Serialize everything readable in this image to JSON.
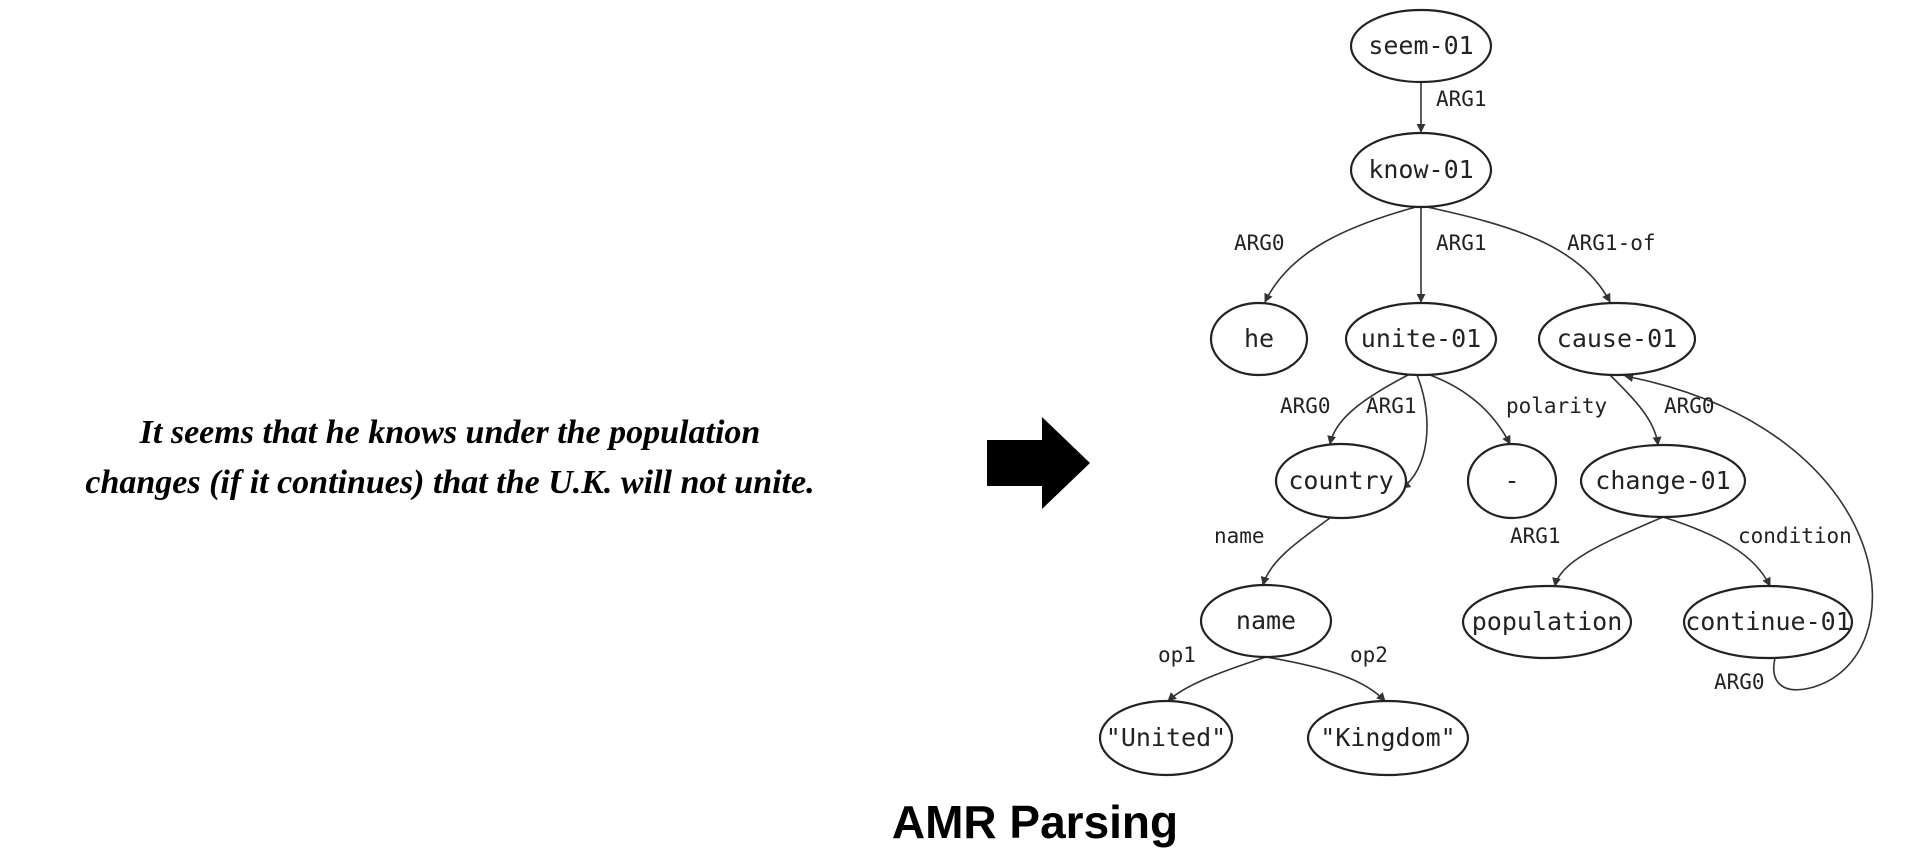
{
  "sentence": {
    "line1": "It seems that he knows under the population",
    "line2": "changes (if it continues) that the U.K. will not unite."
  },
  "arrow": {
    "icon": "right-arrow-icon",
    "color": "#000000"
  },
  "caption": "AMR Parsing",
  "graph": {
    "nodes": [
      {
        "id": "seem",
        "label": "seem-01"
      },
      {
        "id": "know",
        "label": "know-01"
      },
      {
        "id": "he",
        "label": "he"
      },
      {
        "id": "unite",
        "label": "unite-01"
      },
      {
        "id": "cause",
        "label": "cause-01"
      },
      {
        "id": "country",
        "label": "country"
      },
      {
        "id": "minus",
        "label": "-"
      },
      {
        "id": "change",
        "label": "change-01"
      },
      {
        "id": "name",
        "label": "name"
      },
      {
        "id": "population",
        "label": "population"
      },
      {
        "id": "continue",
        "label": "continue-01"
      },
      {
        "id": "united",
        "label": "\"United\""
      },
      {
        "id": "kingdom",
        "label": "\"Kingdom\""
      }
    ],
    "edges": [
      {
        "from": "seem",
        "to": "know",
        "label": "ARG1"
      },
      {
        "from": "know",
        "to": "he",
        "label": "ARG0"
      },
      {
        "from": "know",
        "to": "unite",
        "label": "ARG1"
      },
      {
        "from": "know",
        "to": "cause",
        "label": "ARG1-of"
      },
      {
        "from": "unite",
        "to": "country",
        "label": "ARG0"
      },
      {
        "from": "unite",
        "to": "country",
        "label": "ARG1"
      },
      {
        "from": "unite",
        "to": "minus",
        "label": "polarity"
      },
      {
        "from": "cause",
        "to": "change",
        "label": "ARG0"
      },
      {
        "from": "country",
        "to": "name",
        "label": "name"
      },
      {
        "from": "change",
        "to": "population",
        "label": "ARG1"
      },
      {
        "from": "change",
        "to": "continue",
        "label": "condition"
      },
      {
        "from": "continue",
        "to": "cause",
        "label": "ARG0"
      },
      {
        "from": "name",
        "to": "united",
        "label": "op1"
      },
      {
        "from": "name",
        "to": "kingdom",
        "label": "op2"
      }
    ]
  }
}
